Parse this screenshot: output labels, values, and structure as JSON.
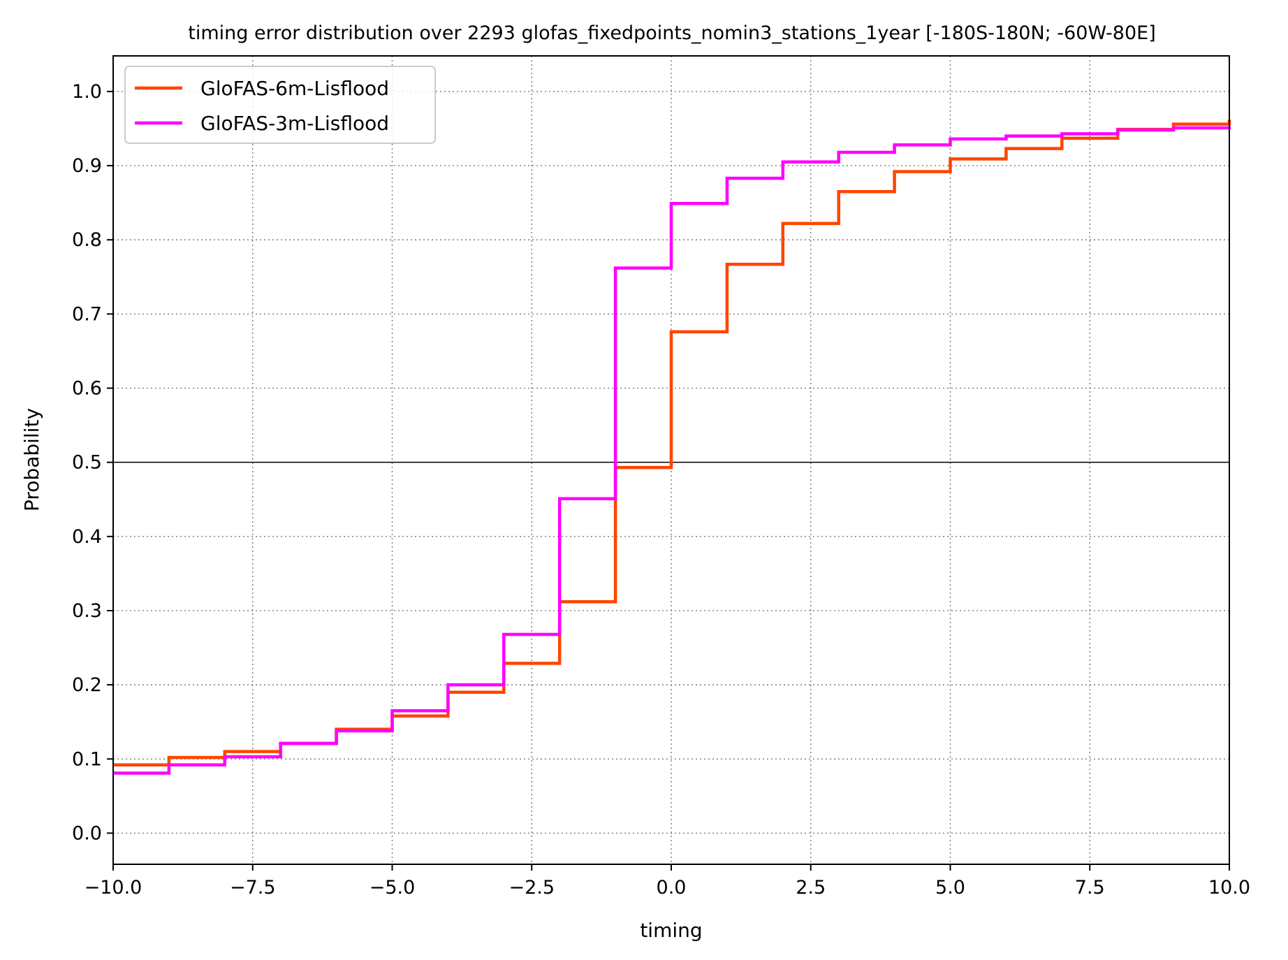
{
  "chart_data": {
    "type": "line",
    "step": "post",
    "title": "timing error distribution over 2293 glofas_fixedpoints_nomin3_stations_1year [-180S-180N; -60W-80E]",
    "xlabel": "timing",
    "ylabel": "Probability",
    "xlim": [
      -10,
      10
    ],
    "ylim": [
      -0.042,
      1.048
    ],
    "x_ticks": [
      -10,
      -7.5,
      -5,
      -2.5,
      0,
      2.5,
      5,
      7.5,
      10
    ],
    "x_tick_labels": [
      "−10.0",
      "−7.5",
      "−5.0",
      "−2.5",
      "0.0",
      "2.5",
      "5.0",
      "7.5",
      "10.0"
    ],
    "y_ticks": [
      0,
      0.1,
      0.2,
      0.3,
      0.4,
      0.5,
      0.6,
      0.7,
      0.8,
      0.9,
      1.0
    ],
    "y_tick_labels": [
      "0.0",
      "0.1",
      "0.2",
      "0.3",
      "0.4",
      "0.5",
      "0.6",
      "0.7",
      "0.8",
      "0.9",
      "1.0"
    ],
    "grid": true,
    "reference_line_y": 0.5,
    "legend_position": "upper-left",
    "x": [
      -10,
      -9,
      -8,
      -7,
      -6,
      -5,
      -4,
      -3,
      -2,
      -1,
      0,
      1,
      2,
      3,
      4,
      5,
      6,
      7,
      8,
      9,
      10
    ],
    "series": [
      {
        "name": "GloFAS-6m-Lisflood",
        "color": "#ff4500",
        "values": [
          0.092,
          0.102,
          0.11,
          0.121,
          0.14,
          0.158,
          0.19,
          0.229,
          0.312,
          0.493,
          0.676,
          0.767,
          0.822,
          0.865,
          0.892,
          0.909,
          0.923,
          0.937,
          0.949,
          0.956,
          0.962
        ]
      },
      {
        "name": "GloFAS-3m-Lisflood",
        "color": "#ff00ff",
        "values": [
          0.081,
          0.092,
          0.103,
          0.121,
          0.138,
          0.165,
          0.2,
          0.268,
          0.451,
          0.762,
          0.849,
          0.883,
          0.905,
          0.918,
          0.928,
          0.936,
          0.94,
          0.943,
          0.948,
          0.951,
          0.953
        ]
      }
    ]
  }
}
